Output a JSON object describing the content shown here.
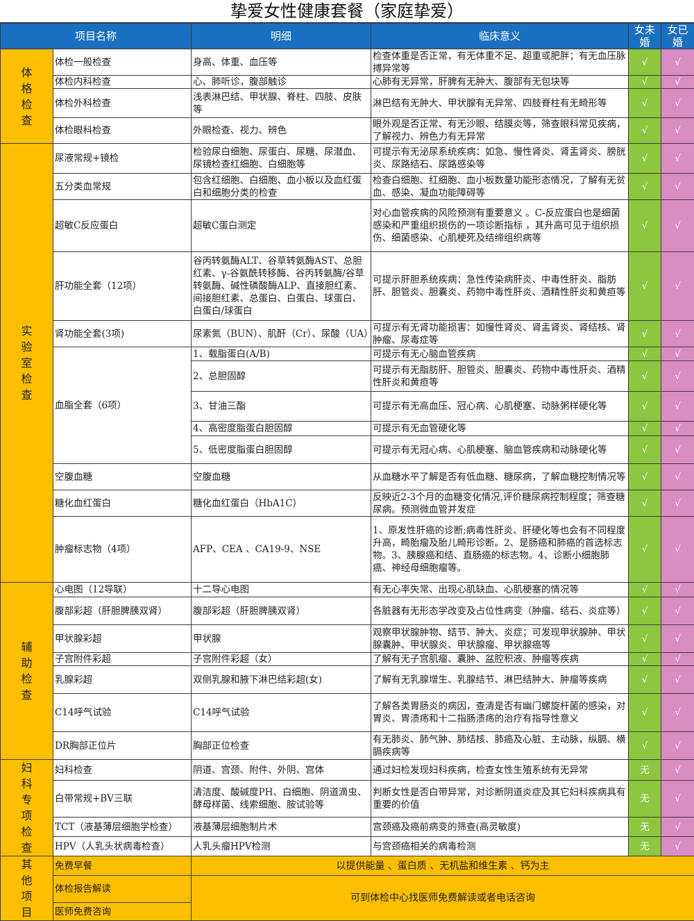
{
  "title": "挚爱女性健康套餐（家庭挚爱）",
  "headers": [
    "项目名称",
    "明细",
    "临床意义",
    "女未婚",
    "女已婚"
  ],
  "colors": {
    "header": "#1a6fc0",
    "category": "#fbbf00",
    "unmarried": "#8dc63f",
    "married": "#d98dc3"
  },
  "sections": [
    {
      "label": "体格检查",
      "rows": [
        {
          "name": "体检一般检查",
          "detail": "身高、体重、血压等",
          "meaning": "检查体重是否正常，有无体重不足、超重或肥胖；有无血压脉搏异常等",
          "unmarried": "√",
          "married": "√"
        },
        {
          "name": "体检内科检查",
          "detail": "心、肺听诊，腹部触诊",
          "meaning": "心肺有无异常，肝脾有无肿大、腹部有无包块等",
          "unmarried": "√",
          "married": "√"
        },
        {
          "name": "体检外科检查",
          "detail": "浅表淋巴结、甲状腺、脊柱、四肢、皮肤等",
          "meaning": "淋巴结有无肿大、甲状腺有无异常、四肢脊柱有无畸形等",
          "unmarried": "√",
          "married": "√"
        },
        {
          "name": "体检眼科检查",
          "detail": "外眼检查、视力、辨色",
          "meaning": "眼外观是否正常、有无沙眼、结膜炎等，筛查眼科常见疾病，了解视力、辨色力有无异常",
          "unmarried": "√",
          "married": "√"
        }
      ]
    },
    {
      "label": "实验室检查",
      "rows": [
        {
          "name": "尿液常规+镜检",
          "detail": "检验尿白细胞、尿蛋白、尿糖、尿潜血、尿镜检查红细胞、白细胞等",
          "meaning": "可提示有无泌尿系统疾病：如急、慢性肾炎、肾盂肾炎、膀胱炎、尿路结石、尿路感染等",
          "unmarried": "√",
          "married": "√"
        },
        {
          "name": "五分类血常规",
          "detail": "包含红细胞、白细胞、血小板以及血红蛋白和细胞分类的检查",
          "meaning": "检查白细胞、红细胞、血小板数量功能形态情况，了解有无贫血、感染、凝血功能障碍等",
          "unmarried": "√",
          "married": "√"
        },
        {
          "name": "超敏C反应蛋白",
          "detail": "超敏C蛋白测定",
          "meaning": "对心血管疾病的风险预测有重要意义 。C-反应蛋白也是细菌感染和严重组织损伤的一项诊断指标 ，其升高可见于组织损伤、细菌感染、心肌梗死及结缔组织病等",
          "unmarried": "√",
          "married": "√"
        },
        {
          "name": "肝功能全套（12项）",
          "detail": "谷丙转氨酶ALT、谷草转氨酶AST、总胆红素、γ-谷氨酰转移酶、谷丙转氨酶/谷草转氨酶、碱性磷酸酶ALP、直接胆红素、间接胆红素、总蛋白、白蛋白、球蛋白、白蛋白/球蛋白",
          "meaning": "可提示肝胆系统疾病：急性传染病肝炎、中毒性肝炎、脂肪肝、胆管炎、胆囊炎、药物中毒性肝炎、酒精性肝炎和黄疸等",
          "unmarried": "√",
          "married": "√"
        },
        {
          "name": "肾功能全套(3项)",
          "detail": "尿素氮（BUN）、肌酐（Cr）、尿酸（UA）",
          "meaning": "可提示有无肾功能损害：如慢性肾炎、肾盂肾炎、肾结核、肾肿瘤、尿毒症等",
          "unmarried": "√",
          "married": "√"
        },
        {
          "name": "血脂全套（6项）",
          "span": 5,
          "detail": "1、载脂蛋白(A/B)",
          "meaning": "可提示有无心脑血管疾病",
          "unmarried": "√",
          "married": "√"
        },
        {
          "detail": "2、总胆固醇",
          "meaning": "可提示有无脂肪肝、胆管炎、胆囊炎、药物中毒性肝炎、酒精性肝炎和黄疸等",
          "unmarried": "√",
          "married": "√"
        },
        {
          "detail": "3、甘油三酯",
          "meaning": "可提示有无高血压、冠心病、心肌梗塞、动脉粥样硬化等",
          "unmarried": "√",
          "married": "√"
        },
        {
          "detail": "4、高密度脂蛋白胆固醇",
          "meaning": "可提示有无血管硬化等",
          "unmarried": "√",
          "married": "√"
        },
        {
          "detail": "5、低密度脂蛋白胆固醇",
          "meaning": "可提示有无冠心病、心肌梗塞、脑血管疾病和动脉硬化等",
          "unmarried": "√",
          "married": "√"
        },
        {
          "name": "空腹血糖",
          "detail": "空腹血糖",
          "meaning": "从血糖水平了解是否有低血糖、糖尿病，了解血糖控制情况等",
          "unmarried": "√",
          "married": "√"
        },
        {
          "name": "糖化血红蛋白",
          "detail": "糖化血红蛋白（HbA1C）",
          "meaning": "反映近2-3个月的血糖变化情况,评价糖尿病控制程度；筛查糖尿病。预测微血管并发症",
          "unmarried": "√",
          "married": "√"
        },
        {
          "name": "肿瘤标志物（4项）",
          "detail": "AFP、CEA 、CA19-9、NSE",
          "meaning": "1、原发性肝癌的诊断;病毒性肝炎、肝硬化等也会有不同程度升高，畸胎瘤及胎儿畸形诊断。2、是肠癌和肺癌的首选标志物。3、胰腺癌和结、直肠癌的标志物。4、诊断小细胞肺癌、神经母细胞瘤等。",
          "unmarried": "√",
          "married": "√"
        }
      ]
    },
    {
      "label": "辅助检查",
      "rows": [
        {
          "name": "心电图（12导联）",
          "detail": "十二导心电图",
          "meaning": "有无心率失常、出现心肌缺血、心肌梗塞的情况等",
          "unmarried": "√",
          "married": "√"
        },
        {
          "name": "腹部彩超（肝胆脾胰双肾）",
          "detail": "腹部彩超（肝胆脾胰双肾）",
          "meaning": "各脏器有无形态学改变及占位性病变（肿瘤、结石、炎症等）",
          "unmarried": "√",
          "married": "√"
        },
        {
          "name": "甲状腺彩超",
          "detail": "甲状腺",
          "meaning": "观察甲状腺肿物、结节、肿大、炎症；可发现甲状腺肿、甲状腺囊肿、甲状腺炎、甲状腺瘤、甲状腺癌等",
          "unmarried": "√",
          "married": "√"
        },
        {
          "name": "子宫附件彩超",
          "detail": "子宫附件彩超（女）",
          "meaning": "了解有无子宫肌瘤、囊肿、盆腔积液、肿瘤等疾病",
          "unmarried": "√",
          "married": "√"
        },
        {
          "name": "乳腺彩超",
          "detail": "双侧乳腺和腋下淋巴结彩超(女)",
          "meaning": "了解有无乳腺增生、乳腺结节、淋巴结肿大、肿瘤等疾病",
          "unmarried": "√",
          "married": "√"
        },
        {
          "name": "C14呼气试验",
          "detail": "C14呼气试验",
          "meaning": "了解各类胃肠炎的病因，查清是否有幽门螺旋杆菌的感染，对胃炎、胃溃疡和十二指肠溃疡的治疗有指导性意义",
          "unmarried": "√",
          "married": "√"
        },
        {
          "name": "DR胸部正位片",
          "detail": "胸部正位检查",
          "meaning": "有无肺炎、肺气肿、肺结核、肺癌及心脏、主动脉，纵膈、横膈疾病等",
          "unmarried": "√",
          "married": "√"
        }
      ]
    },
    {
      "label": "妇科专项检查",
      "rows": [
        {
          "name": "妇科检查",
          "detail": "阴道、宫颈、附件、外阴、宫体",
          "meaning": "通过妇检发现妇科疾病，检查女性生殖系统有无异常",
          "unmarried": "无",
          "married": "√"
        },
        {
          "name": "白带常规+BV三联",
          "detail": "清洁度、酸碱度PH、白细胞、阴道滴虫、酵母样菌、线索细胞、胺试验等",
          "meaning": "判断女性是否白带异常，对诊断阴道炎症及其它妇科疾病具有重要的价值",
          "unmarried": "无",
          "married": "√"
        },
        {
          "name": "TCT（液基薄层细胞学检查）",
          "detail": "液基薄层细胞制片术",
          "meaning": "宫颈癌及癌前病变的筛查(高灵敏度)",
          "unmarried": "无",
          "married": "√"
        },
        {
          "name": "HPV（人乳头状病毒检查）",
          "detail": "人乳头瘤HPV检测",
          "meaning": "与宫颈癌相关的病毒检测",
          "unmarried": "无",
          "married": "√"
        }
      ]
    }
  ],
  "other": {
    "label": "其他项目",
    "items": [
      "免费早餐",
      "体检报告解读",
      "医师免费咨询"
    ],
    "notes": [
      "以提供能量 、蛋白质 、无机盐和维生素 、钙为主",
      "可到体检中心找医师免费解读或者电话咨询"
    ]
  }
}
